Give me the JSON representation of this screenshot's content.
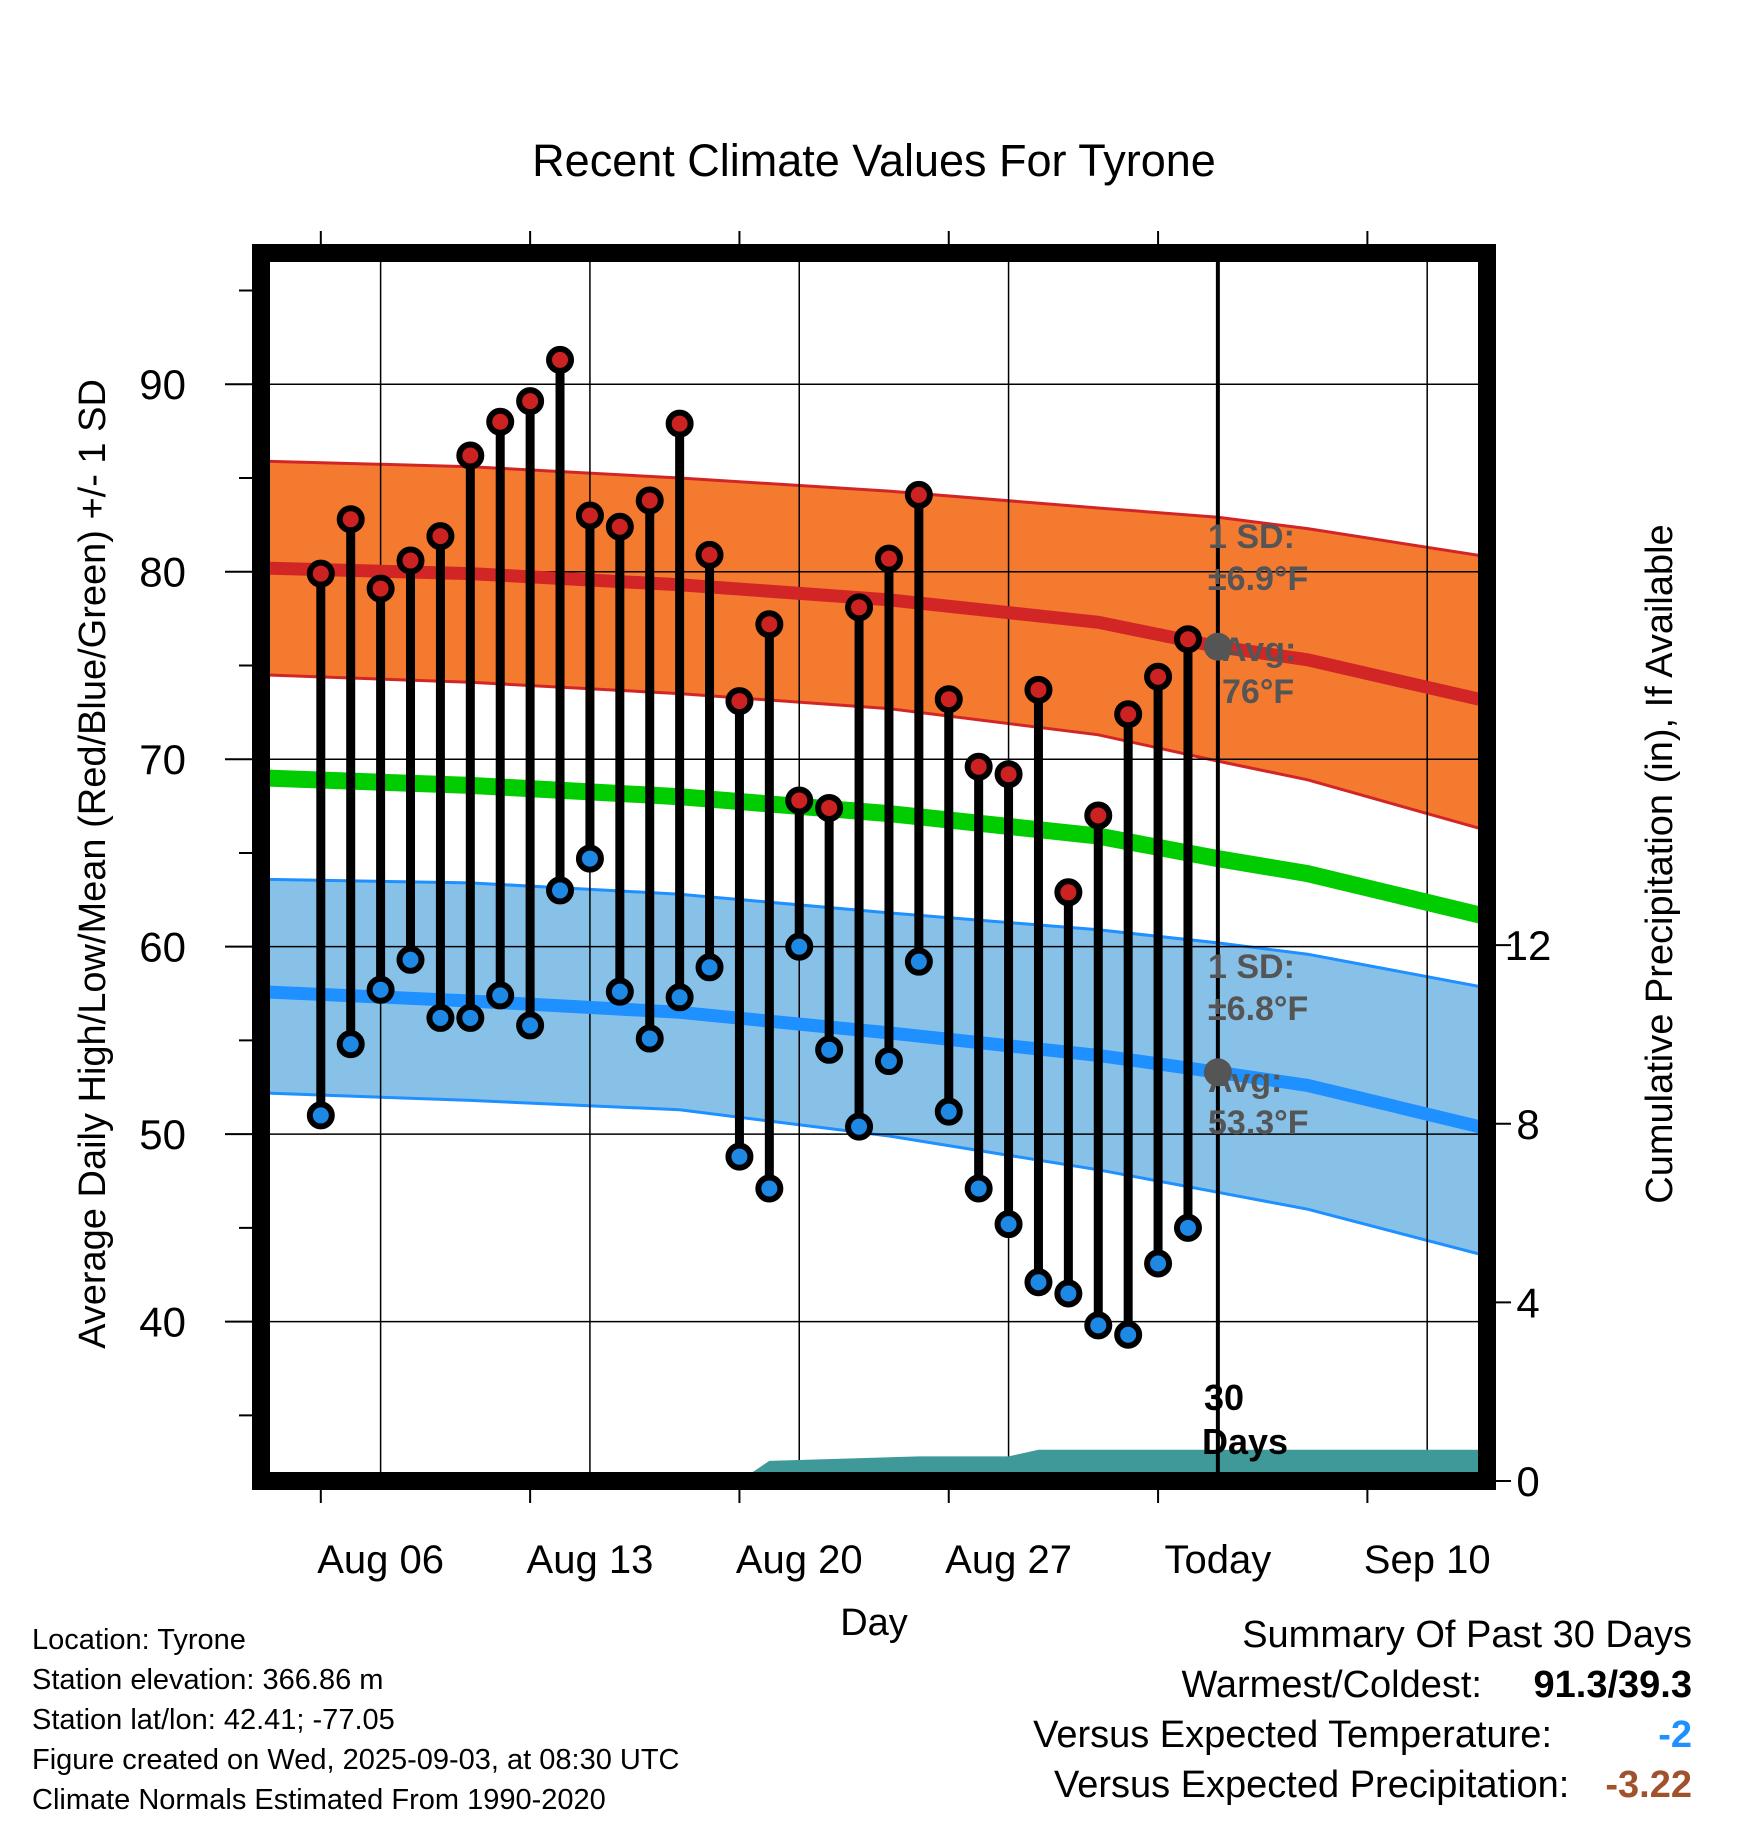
{
  "chart_data": {
    "type": "line",
    "title": "Recent Climate Values For Tyrone",
    "xlabel": "Day",
    "ylabel": "Average Daily High/Low/Mean (Red/Blue/Green) +/- 1 SD",
    "y2label": "Cumulative Precipitation (in), If Available",
    "ylim": [
      31.5,
      97
    ],
    "y2lim": [
      0,
      27.5
    ],
    "y_ticks": [
      40,
      50,
      60,
      70,
      80,
      90
    ],
    "y2_ticks": [
      0,
      4,
      8,
      12
    ],
    "x_tick_labels": [
      "Aug 06",
      "Aug 13",
      "Aug 20",
      "Aug 27",
      "Today",
      "Sep 10"
    ],
    "x_tick_dates": [
      "2025-08-06",
      "2025-08-13",
      "2025-08-20",
      "2025-08-27",
      "2025-09-03",
      "2025-09-10"
    ],
    "x_range": [
      "2025-08-02",
      "2025-09-12"
    ],
    "today": "2025-09-03",
    "grid": true,
    "today_label": [
      "30",
      "Days"
    ],
    "colors": {
      "high": "#d22626",
      "high_band": "#f47a30",
      "low": "#1e90ff",
      "low_band": "#87c1e8",
      "mean": "#00cc00",
      "precip": "#3f9999",
      "marker_high": "#cc2222",
      "marker_low": "#1e88e5",
      "annotation": "#555555"
    },
    "normals": {
      "dates": [
        "2025-08-02",
        "2025-08-09",
        "2025-08-16",
        "2025-08-23",
        "2025-08-30",
        "2025-09-03",
        "2025-09-06",
        "2025-09-12"
      ],
      "high_avg": [
        80.2,
        79.9,
        79.3,
        78.5,
        77.3,
        76.0,
        75.3,
        73.1
      ],
      "high_upper": [
        85.9,
        85.6,
        85.0,
        84.3,
        83.4,
        82.9,
        82.3,
        80.8
      ],
      "high_lower": [
        74.5,
        74.1,
        73.5,
        72.7,
        71.3,
        69.9,
        68.9,
        66.2
      ],
      "mean_avg": [
        69.0,
        68.6,
        68.0,
        67.1,
        65.9,
        64.7,
        63.9,
        61.6
      ],
      "low_avg": [
        57.6,
        57.1,
        56.5,
        55.4,
        54.2,
        53.3,
        52.6,
        50.3
      ],
      "low_upper": [
        63.6,
        63.4,
        62.8,
        61.8,
        60.9,
        60.2,
        59.6,
        57.8
      ],
      "low_lower": [
        52.2,
        51.8,
        51.3,
        49.9,
        48.1,
        46.9,
        46.0,
        43.5
      ]
    },
    "series": [
      {
        "dates": [
          "2025-08-04",
          "2025-08-05",
          "2025-08-06",
          "2025-08-07",
          "2025-08-08",
          "2025-08-09",
          "2025-08-10",
          "2025-08-11",
          "2025-08-12",
          "2025-08-13",
          "2025-08-14",
          "2025-08-15",
          "2025-08-16",
          "2025-08-17",
          "2025-08-18",
          "2025-08-19",
          "2025-08-20",
          "2025-08-21",
          "2025-08-22",
          "2025-08-23",
          "2025-08-24",
          "2025-08-25",
          "2025-08-26",
          "2025-08-27",
          "2025-08-28",
          "2025-08-29",
          "2025-08-30",
          "2025-08-31",
          "2025-09-01",
          "2025-09-02"
        ],
        "values": [
          79.9,
          82.8,
          79.1,
          80.6,
          81.9,
          86.2,
          88.0,
          89.1,
          91.3,
          83.0,
          82.4,
          83.8,
          87.9,
          80.9,
          73.1,
          77.2,
          67.8,
          67.4,
          78.1,
          80.7,
          84.1,
          73.2,
          69.6,
          69.2,
          73.7,
          62.9,
          67.0,
          72.4,
          74.4,
          76.4
        ]
      },
      {
        "values": [
          51.0,
          54.8,
          57.7,
          59.3,
          56.2,
          56.2,
          57.4,
          55.8,
          63.0,
          64.7,
          57.6,
          55.1,
          57.3,
          58.9,
          48.8,
          47.1,
          60.0,
          54.5,
          50.4,
          53.9,
          59.2,
          51.2,
          47.1,
          45.2,
          42.1,
          41.5,
          39.8,
          39.3,
          43.1,
          45.0
        ]
      }
    ],
    "precip": {
      "dates": [
        "2025-08-02",
        "2025-08-18",
        "2025-08-19",
        "2025-08-24",
        "2025-08-26",
        "2025-08-27",
        "2025-08-28",
        "2025-09-12"
      ],
      "values": [
        0,
        0,
        0.45,
        0.55,
        0.55,
        0.55,
        0.7,
        0.7
      ]
    },
    "annotations": {
      "high_sd": [
        "1 SD:",
        "±6.9°F"
      ],
      "high_avg": [
        "Avg:",
        "76°F"
      ],
      "low_sd": [
        "1 SD:",
        "±6.8°F"
      ],
      "low_avg": [
        "Avg:",
        "53.3°F"
      ]
    }
  },
  "info": {
    "location": "Location: Tyrone",
    "elevation": "Station elevation: 366.86 m",
    "latlon": "Station lat/lon: 42.41; -77.05",
    "created": "Figure created on Wed, 2025-09-03, at 08:30 UTC",
    "normals": "Climate Normals Estimated From 1990-2020"
  },
  "summary": {
    "title": "Summary Of Past 30 Days",
    "warm_cold_label": "Warmest/Coldest:",
    "warm_cold_value": "91.3/39.3",
    "temp_label": "Versus Expected Temperature:",
    "temp_value": "-2",
    "temp_color": "#1e90ff",
    "precip_label": "Versus Expected Precipitation:",
    "precip_value": "-3.22",
    "precip_color": "#a0522d"
  }
}
